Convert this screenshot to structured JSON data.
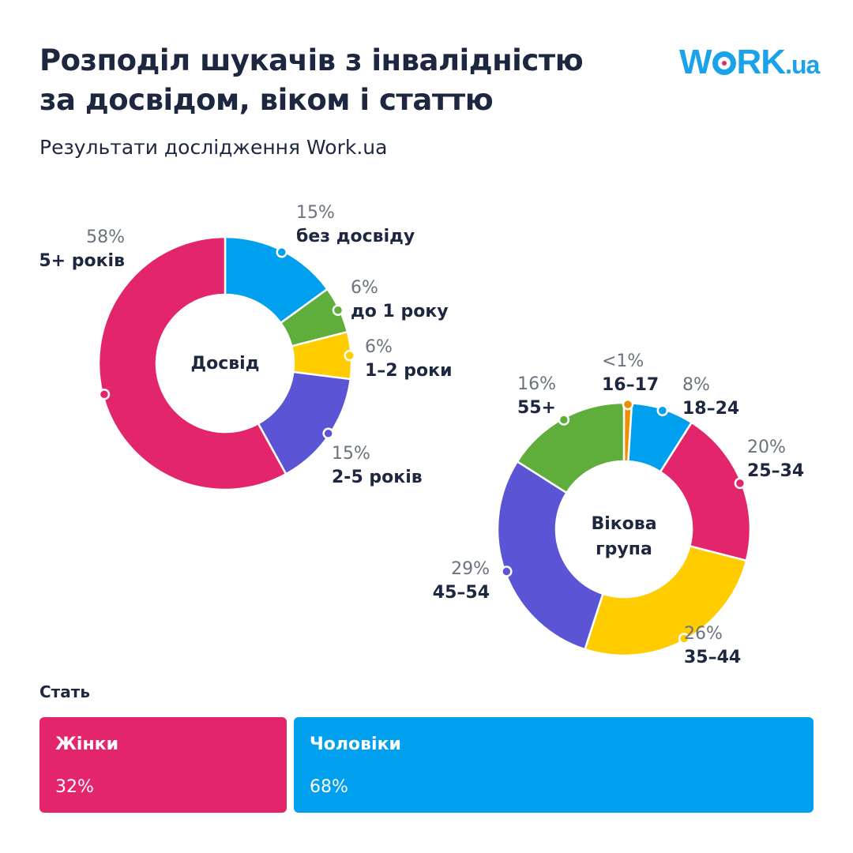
{
  "title_line1": "Розподіл шукачів з інвалідністю",
  "title_line2": "за досвідом, віком і статтю",
  "subtitle": "Результати дослідження Work.ua",
  "logo": "WORK.ua",
  "colors": {
    "pink": "#E3256B",
    "blue": "#00A0EE",
    "green": "#5FAD3A",
    "yellow": "#FFCC00",
    "purple": "#5B55D6",
    "orange": "#F08C00"
  },
  "chart_data": [
    {
      "type": "pie",
      "title": "Досвід",
      "categories": [
        "без досвіду",
        "до 1 року",
        "1–2 роки",
        "2-5 років",
        "5+ років"
      ],
      "values": [
        15,
        6,
        6,
        15,
        58
      ],
      "labels": [
        "15%",
        "6%",
        "6%",
        "15%",
        "58%"
      ],
      "colors": [
        "#00A0EE",
        "#5FAD3A",
        "#FFCC00",
        "#5B55D6",
        "#E3256B"
      ]
    },
    {
      "type": "pie",
      "title_line1": "Вікова",
      "title_line2": "група",
      "categories": [
        "16–17",
        "18–24",
        "25–34",
        "35–44",
        "45–54",
        "55+"
      ],
      "values": [
        1,
        8,
        20,
        26,
        29,
        16
      ],
      "labels": [
        "<1%",
        "8%",
        "20%",
        "26%",
        "29%",
        "16%"
      ],
      "colors": [
        "#F08C00",
        "#00A0EE",
        "#E3256B",
        "#FFCC00",
        "#5B55D6",
        "#5FAD3A"
      ]
    },
    {
      "type": "bar",
      "title": "Стать",
      "categories": [
        "Жінки",
        "Чоловіки"
      ],
      "values": [
        32,
        68
      ],
      "labels": [
        "32%",
        "68%"
      ],
      "colors": [
        "#E3256B",
        "#00A0EE"
      ]
    }
  ]
}
